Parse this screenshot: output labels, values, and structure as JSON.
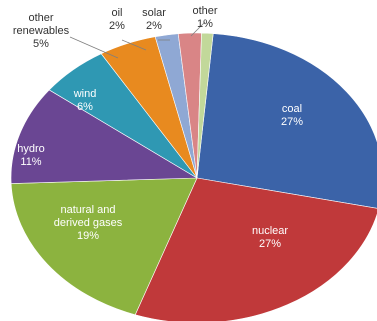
{
  "chart_data": {
    "type": "pie",
    "title": "",
    "slices": [
      {
        "name": "coal",
        "value": 27,
        "label": "27%",
        "color": "#3b63a8",
        "name_lines": [
          "coal"
        ]
      },
      {
        "name": "nuclear",
        "value": 27,
        "label": "27%",
        "color": "#c0393a",
        "name_lines": [
          "nuclear"
        ]
      },
      {
        "name": "natural and derived gases",
        "value": 19,
        "label": "19%",
        "color": "#8cb33f",
        "name_lines": [
          "natural and",
          "derived gases"
        ]
      },
      {
        "name": "hydro",
        "value": 11,
        "label": "11%",
        "color": "#6a4693",
        "name_lines": [
          "hydro"
        ]
      },
      {
        "name": "wind",
        "value": 6,
        "label": "6%",
        "color": "#2f98b3",
        "name_lines": [
          "wind"
        ]
      },
      {
        "name": "other renewables",
        "value": 5,
        "label": "5%",
        "color": "#e88a1f",
        "name_lines": [
          "other",
          "renewables"
        ]
      },
      {
        "name": "oil",
        "value": 2,
        "label": "2%",
        "color": "#8fa8d4",
        "name_lines": [
          "oil"
        ]
      },
      {
        "name": "solar",
        "value": 2,
        "label": "2%",
        "color": "#d98586",
        "name_lines": [
          "solar"
        ]
      },
      {
        "name": "other",
        "value": 1,
        "label": "1%",
        "color": "#c2d89a",
        "name_lines": [
          "other"
        ]
      }
    ]
  }
}
